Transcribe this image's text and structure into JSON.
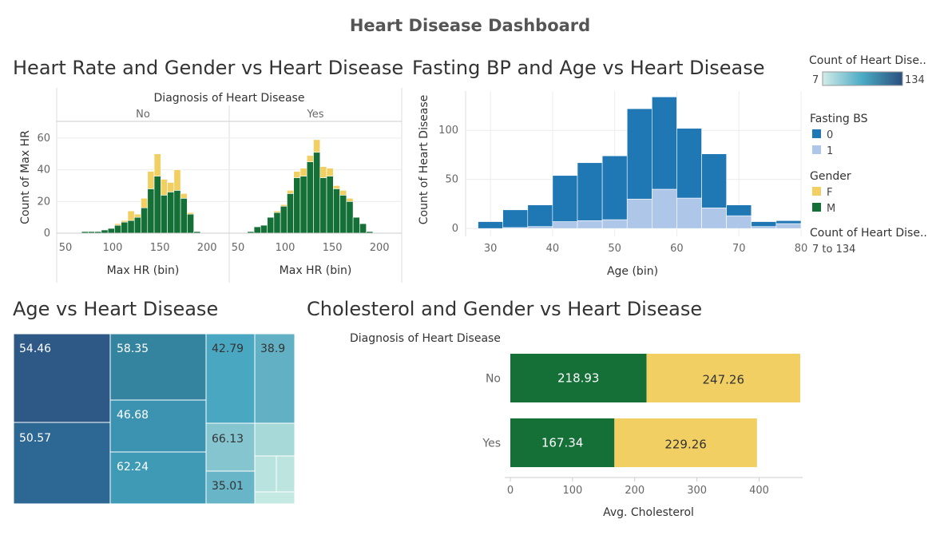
{
  "dashboard": {
    "title": "Heart Disease Dashboard"
  },
  "colors": {
    "male": "#157038",
    "female": "#f2cf63",
    "fbs0": "#1f77b4",
    "fbs1": "#aec7e8",
    "grid": "#ececec",
    "axis": "#cccccc"
  },
  "sheets": {
    "hr": {
      "title": "Heart Rate and Gender vs Heart Disease",
      "header": "Diagnosis of Heart Disease",
      "panels": [
        "No",
        "Yes"
      ],
      "ylabel": "Count of Max HR",
      "xlabel": "Max HR (bin)"
    },
    "age_bp": {
      "title": "Fasting BP and Age vs Heart Disease",
      "ylabel": "Count of Heart Disease",
      "xlabel": "Age (bin)"
    },
    "age": {
      "title": "Age vs Heart Disease"
    },
    "chol": {
      "title": "Cholesterol and Gender vs Heart Disease",
      "header": "Diagnosis of Heart Disease",
      "xlabel": "Avg. Cholesterol"
    }
  },
  "legends": {
    "count_color": {
      "title": "Count of Heart Dise..",
      "min": "7",
      "max": "134"
    },
    "fasting_bs": {
      "title": "Fasting BS",
      "items": [
        "0",
        "1"
      ]
    },
    "gender": {
      "title": "Gender",
      "items": [
        "F",
        "M"
      ]
    },
    "count_size": {
      "title": "Count of Heart Dise..",
      "range": "7 to 134"
    }
  },
  "chart_data": [
    {
      "type": "bar",
      "title": "Heart Rate and Gender vs Heart Disease",
      "stacked": true,
      "xlabel": "Max HR (bin)",
      "ylabel": "Count of Max HR",
      "ylim": [
        0,
        68
      ],
      "xlim": [
        50,
        210
      ],
      "xticks": [
        50,
        100,
        150,
        200
      ],
      "yticks": [
        0,
        20,
        40,
        60
      ],
      "bin_width": 7,
      "panels": [
        {
          "name": "No",
          "bins": [
            60,
            67,
            74,
            81,
            88,
            95,
            102,
            109,
            116,
            123,
            130,
            137,
            144,
            151,
            158,
            165,
            172,
            179,
            186,
            193
          ],
          "series": [
            {
              "name": "M",
              "values": [
                0,
                1,
                1,
                1,
                2,
                3,
                5,
                7,
                8,
                10,
                16,
                28,
                36,
                24,
                26,
                27,
                22,
                12,
                1,
                0
              ]
            },
            {
              "name": "F",
              "values": [
                0,
                0,
                0,
                0,
                0,
                0,
                1,
                1,
                6,
                2,
                6,
                11,
                14,
                10,
                6,
                13,
                3,
                1,
                0,
                0
              ]
            }
          ]
        },
        {
          "name": "Yes",
          "bins": [
            60,
            67,
            74,
            81,
            88,
            95,
            102,
            109,
            116,
            123,
            130,
            137,
            144,
            151,
            158,
            165,
            172,
            179,
            186,
            193
          ],
          "series": [
            {
              "name": "M",
              "values": [
                1,
                4,
                5,
                10,
                13,
                17,
                25,
                35,
                36,
                45,
                51,
                35,
                36,
                28,
                24,
                20,
                10,
                6,
                1,
                0
              ]
            },
            {
              "name": "F",
              "values": [
                0,
                0,
                0,
                0,
                1,
                1,
                2,
                4,
                5,
                4,
                8,
                7,
                5,
                2,
                3,
                2,
                0,
                0,
                0,
                0
              ]
            }
          ]
        }
      ],
      "header": "Diagnosis of Heart Disease"
    },
    {
      "type": "bar",
      "title": "Fasting BP and Age vs Heart Disease",
      "stacked": true,
      "xlabel": "Age (bin)",
      "ylabel": "Count of Heart Disease",
      "ylim": [
        -8,
        140
      ],
      "xlim": [
        26,
        80
      ],
      "xticks": [
        30,
        40,
        50,
        60,
        70,
        80
      ],
      "yticks": [
        0,
        50,
        100
      ],
      "bin_width": 4,
      "categories": [
        28,
        32,
        36,
        40,
        44,
        48,
        52,
        56,
        60,
        64,
        68,
        72,
        76
      ],
      "series": [
        {
          "name": "1",
          "values": [
            0,
            1,
            2,
            7,
            8,
            9,
            30,
            40,
            31,
            21,
            13,
            2,
            5
          ]
        },
        {
          "name": "0",
          "values": [
            7,
            18,
            22,
            47,
            59,
            65,
            92,
            94,
            71,
            55,
            11,
            5,
            3
          ]
        }
      ]
    },
    {
      "type": "heatmap",
      "title": "Age vs Heart Disease",
      "note": "treemap; color = Count of Heart Disease",
      "labels": [
        "54.46",
        "58.35",
        "42.79",
        "38.9",
        "50.57",
        "46.68",
        "62.24",
        "66.13",
        "35.01"
      ],
      "color_range": [
        7,
        134
      ]
    },
    {
      "type": "bar",
      "title": "Cholesterol and Gender vs Heart Disease",
      "orientation": "horizontal",
      "stacked": true,
      "categories": [
        "No",
        "Yes"
      ],
      "series": [
        {
          "name": "M",
          "values": [
            218.93,
            167.34
          ]
        },
        {
          "name": "F",
          "values": [
            247.26,
            229.26
          ]
        }
      ],
      "xlabel": "Avg. Cholesterol",
      "xlim": [
        0,
        470
      ],
      "xticks": [
        0,
        100,
        200,
        300,
        400
      ],
      "header": "Diagnosis of Heart Disease"
    }
  ]
}
